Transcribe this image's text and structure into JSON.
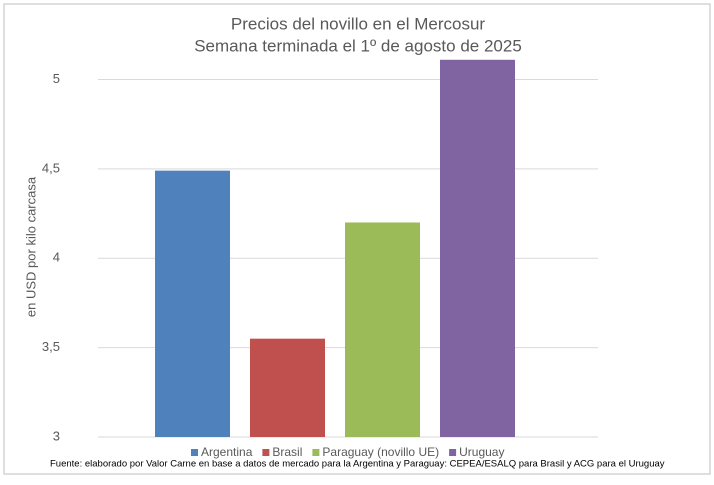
{
  "chart_data": {
    "type": "bar",
    "title": "Precios del novillo en el Mercosur",
    "subtitle": "Semana terminada el 1º de agosto de 2025",
    "y_label": "en USD por kilo carcasa",
    "categories": [
      "Argentina",
      "Brasil",
      "Paraguay (novillo UE)",
      "Uruguay"
    ],
    "values": [
      4.49,
      3.55,
      4.2,
      5.11
    ],
    "colors": [
      "#4f81bd",
      "#c0504d",
      "#9bbb59",
      "#8064a2"
    ],
    "ylim": [
      3,
      5.12
    ],
    "yticks": [
      3,
      {
        "value": 3.5,
        "label": "3,5"
      },
      4,
      {
        "value": 4.5,
        "label": "4,5"
      },
      5
    ],
    "grid": true,
    "legend": "bottom",
    "note": "Fuente: elaborado por Valor Carne en base a datos de mercado para la Argentina y Paraguay: CEPEA/ESALQ para Brasil y ACG para el Uruguay"
  }
}
